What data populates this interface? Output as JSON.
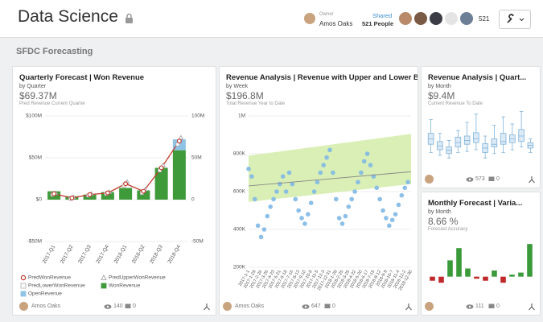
{
  "header": {
    "title": "Data Science",
    "owner_label": "Owner",
    "owner": "Amos Oaks",
    "shared_label": "Shared",
    "shared_count": "521 People",
    "viewer_count": "521"
  },
  "section_title": "SFDC Forecasting",
  "chart_data": [
    {
      "type": "combo",
      "title": "Quarterly Forecast | Won Revenue",
      "subtitle": "by Quarter",
      "metric": "$69.37M",
      "metric_label": "Pred Revenue Current Quarter",
      "categories": [
        "2017-Q1",
        "2017-Q2",
        "2017-Q3",
        "2017-Q4",
        "2018-Q1",
        "2018-Q2",
        "2018-Q3",
        "2018-Q4"
      ],
      "series": [
        {
          "name": "PredWonRevenue",
          "kind": "line",
          "marker": "circle",
          "color": "#c0392b",
          "values": [
            7,
            2,
            6,
            8,
            19,
            10,
            38,
            70
          ]
        },
        {
          "name": "PredUpperWonRevenue",
          "kind": "points",
          "marker": "triangle",
          "color": "#999999",
          "values": [
            8,
            3,
            7,
            9,
            21,
            12,
            41,
            74
          ]
        },
        {
          "name": "PredLowerWonRevenue",
          "kind": "points",
          "marker": "square",
          "color": "#aaaaaa",
          "values": [
            6,
            1,
            5,
            7,
            17,
            8,
            35,
            66
          ]
        },
        {
          "name": "WonRevenue",
          "kind": "bar",
          "marker": "square",
          "color": "#3f9a3a",
          "values": [
            10,
            4,
            6,
            9,
            14,
            11,
            38,
            59
          ]
        },
        {
          "name": "OpenRevenue",
          "kind": "bar",
          "marker": "square",
          "color": "#8ec3e6",
          "values": [
            null,
            null,
            null,
            null,
            null,
            null,
            null,
            13
          ]
        }
      ],
      "ylim": [
        -50,
        100
      ],
      "yticks": [
        {
          "value": -50,
          "label": "-$50M"
        },
        {
          "value": 0,
          "label": "$0"
        },
        {
          "value": 50,
          "label": "$50M"
        },
        {
          "value": 100,
          "label": "$100M"
        }
      ],
      "y2lim": [
        -50,
        100
      ],
      "y2ticks": [
        {
          "value": -50,
          "label": "-50M"
        },
        0,
        {
          "value": 50,
          "label": "50M"
        },
        {
          "value": 100,
          "label": "100M"
        }
      ],
      "grid": true,
      "footer": {
        "owner": "Amos Oaks",
        "views": "140",
        "comments": "0"
      }
    },
    {
      "type": "scatter",
      "title": "Revenue Analysis | Revenue with Upper and Lower Bound",
      "subtitle": "by Week",
      "metric": "$196.8M",
      "metric_label": "Total Revenue Year to Date",
      "x": [
        0,
        2,
        4,
        6,
        8,
        10,
        12,
        14,
        16,
        18,
        20,
        22,
        24,
        26,
        28,
        30,
        32,
        34,
        36,
        38,
        40,
        42,
        44,
        46,
        48,
        50,
        52,
        54,
        56,
        58,
        60,
        62,
        64,
        66,
        68,
        70,
        72,
        74,
        76,
        78,
        80,
        82,
        84,
        86,
        88,
        90,
        92,
        94,
        96,
        98,
        100,
        102
      ],
      "values": [
        720000,
        680000,
        560000,
        420000,
        360000,
        400000,
        470000,
        520000,
        560000,
        600000,
        640000,
        680000,
        600000,
        700000,
        640000,
        560000,
        500000,
        460000,
        430000,
        480000,
        540000,
        600000,
        650000,
        700000,
        740000,
        780000,
        820000,
        700000,
        560000,
        460000,
        430000,
        470000,
        520000,
        560000,
        600000,
        650000,
        700000,
        760000,
        800000,
        740000,
        680000,
        620000,
        560000,
        500000,
        460000,
        420000,
        450000,
        480000,
        530000,
        580000,
        620000,
        650000
      ],
      "color": "#7fb8e6",
      "band": {
        "x": [
          0,
          104
        ],
        "lower": [
          545000,
          640000
        ],
        "upper": [
          790000,
          905000
        ],
        "color": "#d9efb5"
      },
      "trend": {
        "x": [
          0,
          104
        ],
        "values": [
          630000,
          705000
        ],
        "color": "#888888"
      },
      "xlim": [
        0,
        104
      ],
      "xticks": [
        {
          "value": 0,
          "label": "2017-1-1"
        },
        {
          "value": 4,
          "label": "2017-1-29"
        },
        {
          "value": 8,
          "label": "2017-2-26"
        },
        {
          "value": 12,
          "label": "2017-3-26"
        },
        {
          "value": 16,
          "label": "2017-4-23"
        },
        {
          "value": 20,
          "label": "2017-5-21"
        },
        {
          "value": 24,
          "label": "2017-6-18"
        },
        {
          "value": 28,
          "label": "2017-7-16"
        },
        {
          "value": 32,
          "label": "2017-8-13"
        },
        {
          "value": 36,
          "label": "2017-9-10"
        },
        {
          "value": 40,
          "label": "2017-10-8"
        },
        {
          "value": 44,
          "label": "2017-11-5"
        },
        {
          "value": 48,
          "label": "2017-12-3"
        },
        {
          "value": 52,
          "label": "2017-12-31"
        },
        {
          "value": 56,
          "label": "2018-1-28"
        },
        {
          "value": 60,
          "label": "2018-2-25"
        },
        {
          "value": 64,
          "label": "2018-3-25"
        },
        {
          "value": 68,
          "label": "2018-4-22"
        },
        {
          "value": 72,
          "label": "2018-5-20"
        },
        {
          "value": 76,
          "label": "2018-6-17"
        },
        {
          "value": 80,
          "label": "2018-7-15"
        },
        {
          "value": 84,
          "label": "2018-8-12"
        },
        {
          "value": 88,
          "label": "2018-9-9"
        },
        {
          "value": 92,
          "label": "2018-10-7"
        },
        {
          "value": 96,
          "label": "2018-11-4"
        },
        {
          "value": 100,
          "label": "2018-12-2"
        },
        {
          "value": 104,
          "label": "2018-12-30"
        }
      ],
      "ylim": [
        200000,
        1000000
      ],
      "yticks": [
        {
          "value": 200000,
          "label": "200K"
        },
        {
          "value": 400000,
          "label": "400K"
        },
        {
          "value": 600000,
          "label": "600K"
        },
        {
          "value": 800000,
          "label": "800K"
        },
        {
          "value": 1000000,
          "label": "1M"
        }
      ],
      "grid": true,
      "footer": {
        "owner": "Amos Oaks",
        "views": "647",
        "comments": "0"
      }
    },
    {
      "type": "box",
      "title": "Revenue Analysis | Quart...",
      "subtitle": "by Month",
      "metric": "$9.4M",
      "metric_label": "Current Revenue To Date",
      "boxes": [
        {
          "min": 20,
          "q1": 35,
          "median": 45,
          "q3": 55,
          "max": 80
        },
        {
          "min": 15,
          "q1": 25,
          "median": 32,
          "q3": 40,
          "max": 55
        },
        {
          "min": 10,
          "q1": 18,
          "median": 24,
          "q3": 30,
          "max": 42
        },
        {
          "min": 20,
          "q1": 30,
          "median": 38,
          "q3": 48,
          "max": 60
        },
        {
          "min": 22,
          "q1": 35,
          "median": 42,
          "q3": 50,
          "max": 75
        },
        {
          "min": 25,
          "q1": 38,
          "median": 45,
          "q3": 56,
          "max": 90
        },
        {
          "min": 10,
          "q1": 20,
          "median": 28,
          "q3": 36,
          "max": 50
        },
        {
          "min": 18,
          "q1": 30,
          "median": 35,
          "q3": 45,
          "max": 70
        },
        {
          "min": 20,
          "q1": 35,
          "median": 40,
          "q3": 55,
          "max": 85
        },
        {
          "min": 25,
          "q1": 38,
          "median": 45,
          "q3": 52,
          "max": 72
        },
        {
          "min": 30,
          "q1": 40,
          "median": 50,
          "q3": 62,
          "max": 95
        },
        {
          "min": 20,
          "q1": 28,
          "median": 33,
          "q3": 38,
          "max": 45
        }
      ],
      "ylim": [
        0,
        100
      ],
      "color": "#7fb2da",
      "fill": "#dceaf6",
      "footer": {
        "views": "573",
        "comments": "0"
      }
    },
    {
      "type": "bar",
      "title": "Monthly Forecast | Varia...",
      "subtitle": "by Month",
      "metric": "8.66 %",
      "metric_label": "Forecast Accuracy",
      "values": [
        -2,
        -3,
        8,
        14,
        4,
        -1,
        -2,
        3,
        -3,
        1,
        2,
        16
      ],
      "ylim": [
        -10,
        20
      ],
      "positive_color": "#3a9a3a",
      "negative_color": "#c0292b",
      "footer": {
        "views": "111",
        "comments": "0"
      }
    }
  ]
}
